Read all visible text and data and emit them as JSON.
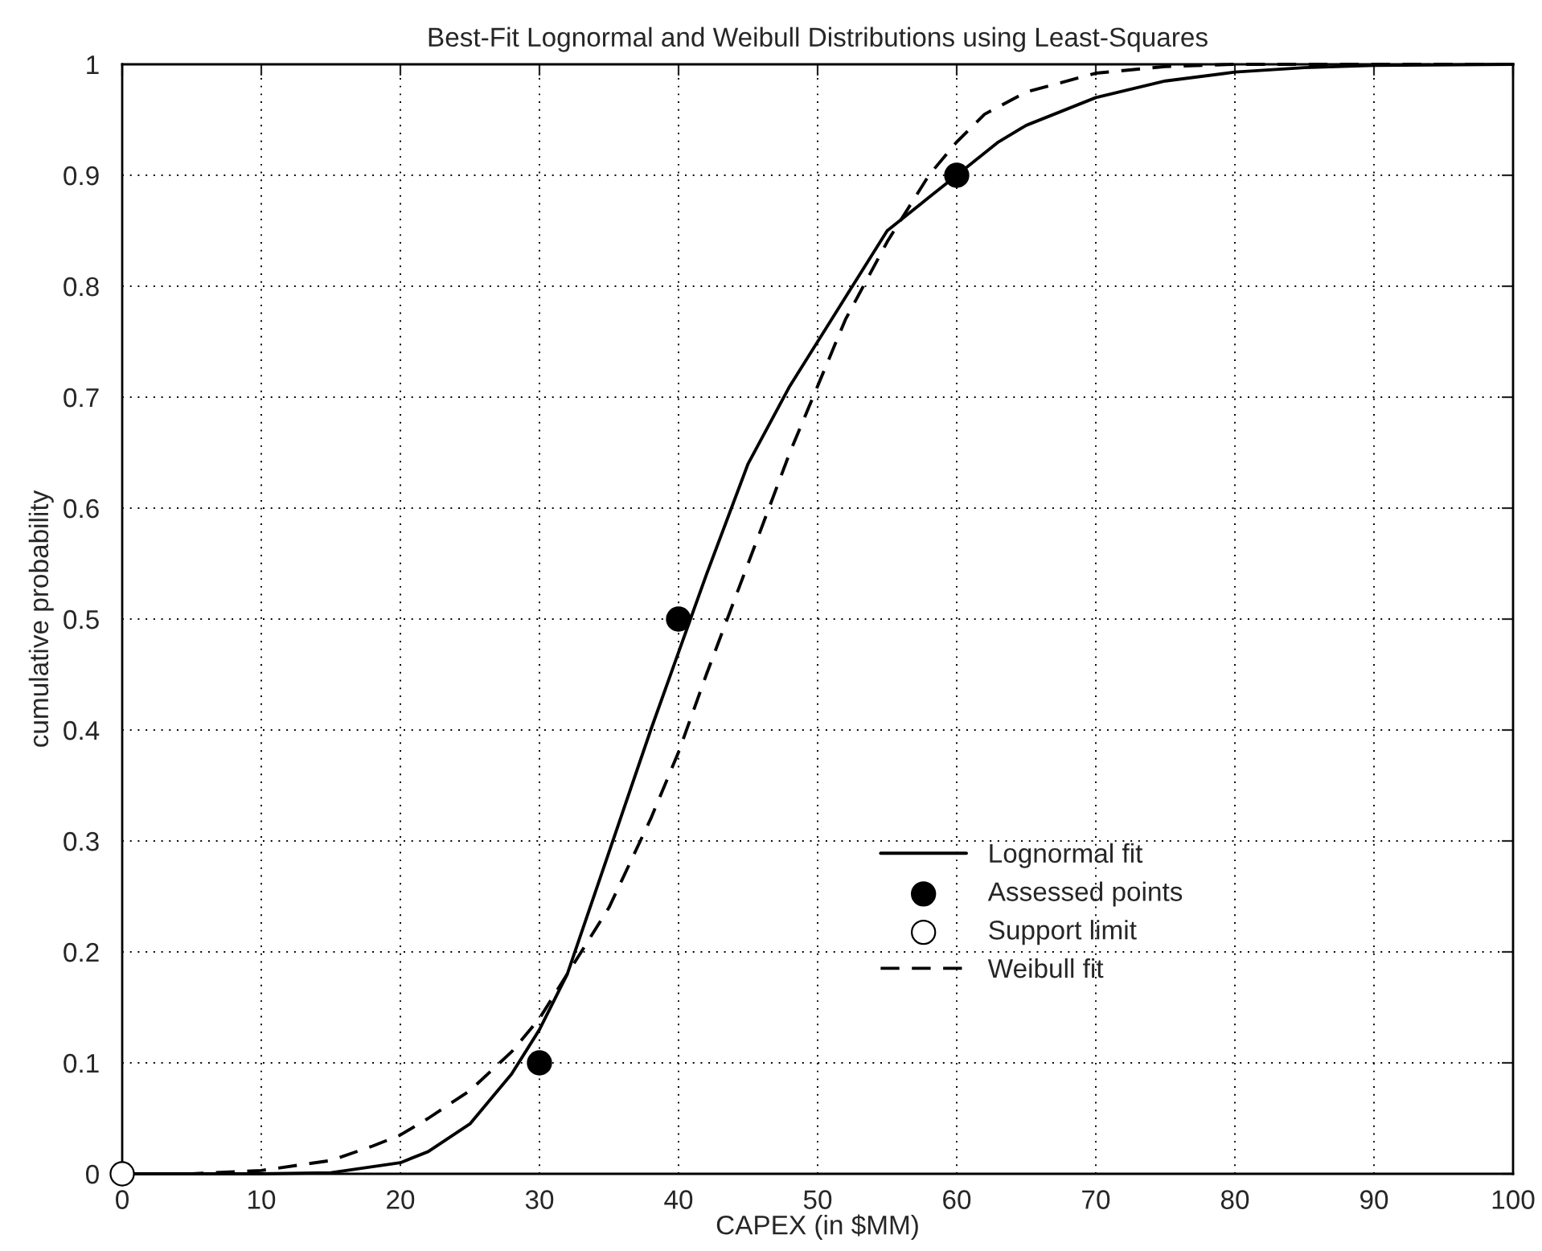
{
  "chart_data": {
    "type": "line",
    "title": "Best-Fit Lognormal and Weibull Distributions using Least-Squares",
    "xlabel": "CAPEX (in $MM)",
    "ylabel": "cumulative probability",
    "xlim": [
      0,
      100
    ],
    "xticks": [
      0,
      10,
      20,
      30,
      40,
      50,
      60,
      70,
      80,
      90,
      100
    ],
    "ylim": [
      0,
      1
    ],
    "yticks": [
      0,
      0.1,
      0.2,
      0.3,
      0.4,
      0.5,
      0.6,
      0.7,
      0.8,
      0.9,
      1
    ],
    "grid": true,
    "legend": "lower right",
    "series": [
      {
        "name": "Lognormal fit",
        "color": "#000000",
        "line_style": "solid",
        "marker": "none",
        "x": [
          0,
          10,
          15,
          20,
          22,
          25,
          28,
          30,
          32,
          35,
          38,
          40,
          42,
          45,
          48,
          50,
          52,
          55,
          58,
          60,
          63,
          65,
          70,
          75,
          80,
          85,
          90,
          100
        ],
        "values": [
          0,
          0,
          0.001,
          0.01,
          0.02,
          0.045,
          0.09,
          0.13,
          0.18,
          0.29,
          0.4,
          0.47,
          0.54,
          0.64,
          0.71,
          0.75,
          0.79,
          0.85,
          0.88,
          0.9,
          0.93,
          0.945,
          0.97,
          0.985,
          0.993,
          0.997,
          0.999,
          1
        ]
      },
      {
        "name": "Assessed points",
        "type": "scatter",
        "color": "#000000",
        "marker": "circle",
        "x": [
          30,
          40,
          60
        ],
        "values": [
          0.1,
          0.5,
          0.9
        ]
      },
      {
        "name": "Support limit",
        "type": "scatter",
        "color": "#ffffff",
        "marker": "circle",
        "x": [
          0
        ],
        "values": [
          0
        ]
      },
      {
        "name": "Weibull fit",
        "color": "#000000",
        "line_style": "dashed",
        "marker": "none",
        "x": [
          0,
          5,
          10,
          15,
          18,
          20,
          22,
          25,
          28,
          30,
          32,
          35,
          38,
          40,
          42,
          45,
          48,
          50,
          52,
          55,
          58,
          60,
          62,
          65,
          70,
          75,
          80,
          100
        ],
        "values": [
          0,
          0,
          0.003,
          0.012,
          0.025,
          0.035,
          0.05,
          0.075,
          0.11,
          0.14,
          0.18,
          0.24,
          0.32,
          0.38,
          0.45,
          0.55,
          0.65,
          0.71,
          0.77,
          0.84,
          0.9,
          0.93,
          0.955,
          0.975,
          0.992,
          0.998,
          1,
          1
        ]
      }
    ]
  }
}
